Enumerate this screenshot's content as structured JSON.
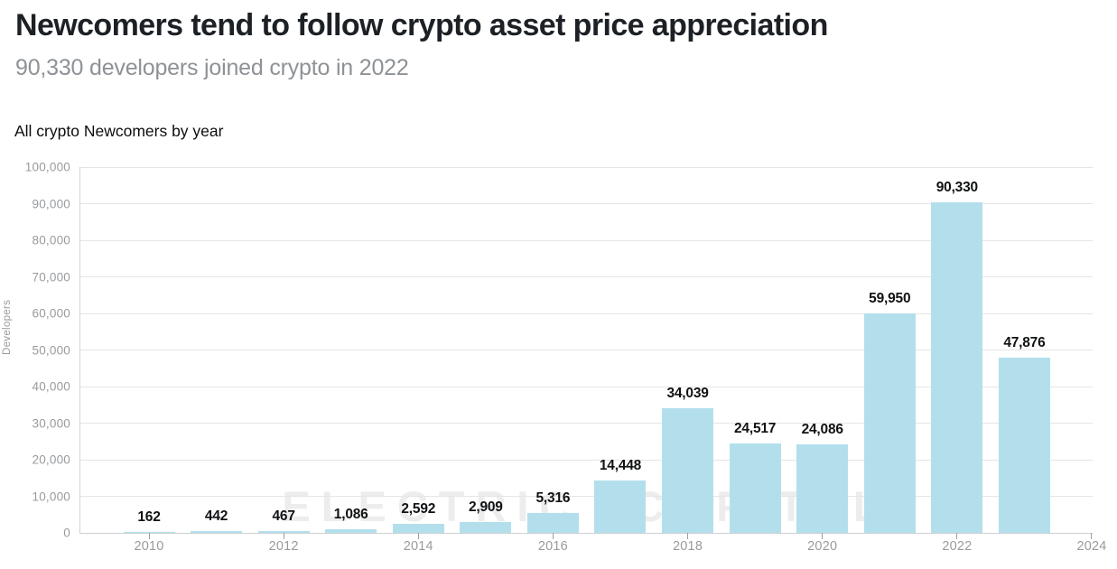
{
  "header": {
    "title": "Newcomers tend to follow crypto asset price appreciation",
    "subtitle": "90,330 developers joined crypto in 2022"
  },
  "section": {
    "label": "All crypto Newcomers by year"
  },
  "watermark": {
    "word_left": "ELECTRIC",
    "word_right": "CAPITAL",
    "icon": "lightning-bolt-icon",
    "color": "#ededee"
  },
  "colors": {
    "title_text": "#1d2126",
    "subtitle_text": "#8e9296",
    "grid": "#e4e5e6",
    "axis_line": "#cfd1d3",
    "tick_mark": "#9aa0a4",
    "axis_text": "#989b9e",
    "data_label_text": "#101214"
  },
  "chart_data": {
    "type": "bar",
    "title": "All crypto Newcomers by year",
    "xlabel": "",
    "ylabel": "Developers",
    "categories": [
      2010,
      2011,
      2012,
      2013,
      2014,
      2015,
      2016,
      2017,
      2018,
      2019,
      2020,
      2021,
      2022,
      2023
    ],
    "values": [
      162,
      442,
      467,
      1086,
      2592,
      2909,
      5316,
      14448,
      34039,
      24517,
      24086,
      59950,
      90330,
      47876
    ],
    "value_labels": [
      "162",
      "442",
      "467",
      "1,086",
      "2,592",
      "2,909",
      "5,316",
      "14,448",
      "34,039",
      "24,517",
      "24,086",
      "59,950",
      "90,330",
      "47,876"
    ],
    "ylim": [
      0,
      100000
    ],
    "ytick_step": 10000,
    "ytick_labels": [
      "0",
      "10,000",
      "20,000",
      "30,000",
      "40,000",
      "50,000",
      "60,000",
      "70,000",
      "80,000",
      "90,000",
      "100,000"
    ],
    "xtick_years": [
      2010,
      2012,
      2014,
      2016,
      2018,
      2020,
      2022,
      2024
    ],
    "bar_color": "#b3dfec",
    "grid": true,
    "legend": null
  }
}
